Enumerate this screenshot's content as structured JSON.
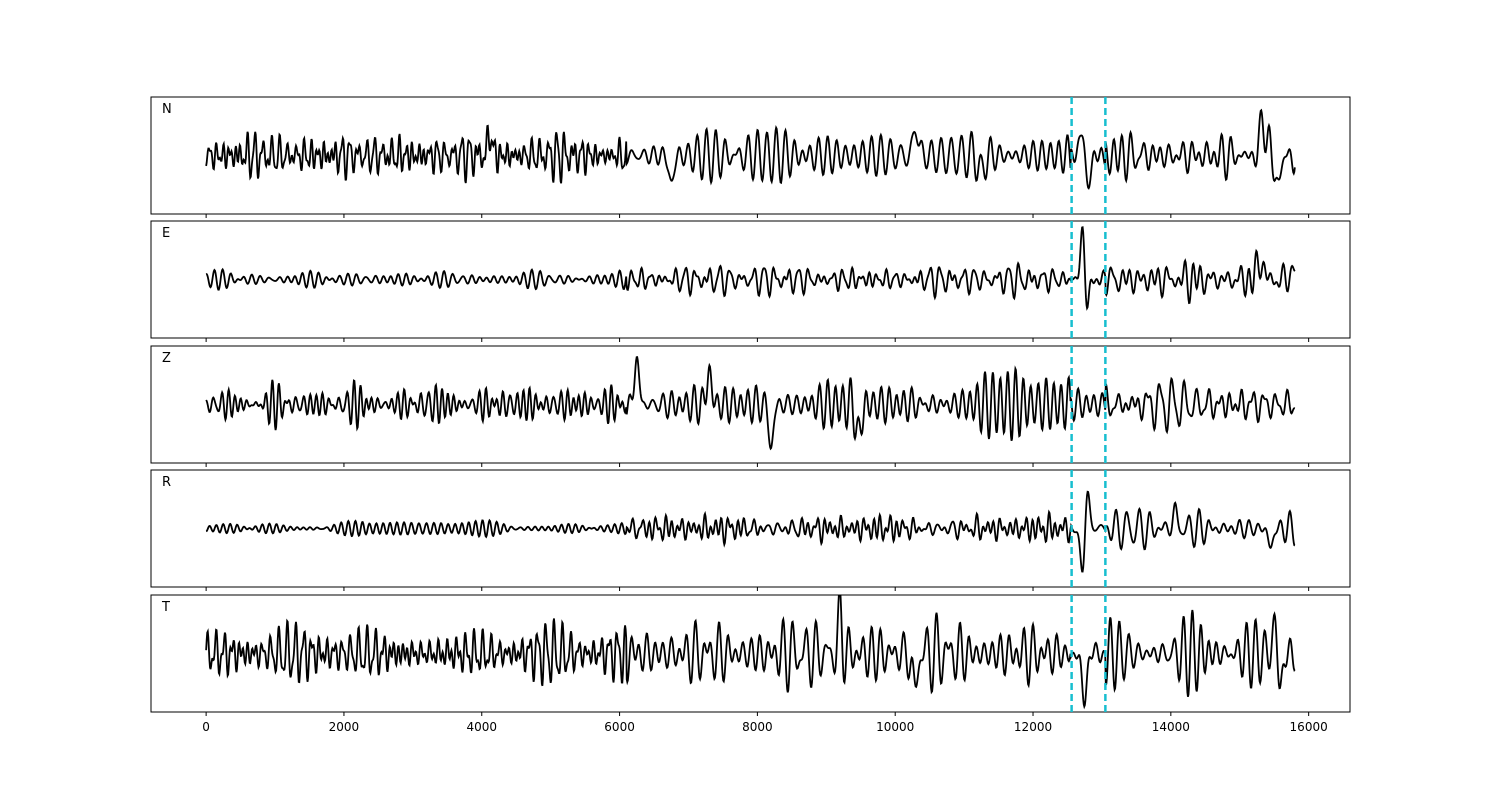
{
  "chart_data": {
    "type": "line",
    "xlim": [
      -800,
      16600
    ],
    "x_ticks": [
      0,
      2000,
      4000,
      6000,
      8000,
      10000,
      12000,
      14000,
      16000
    ],
    "x_tick_labels": [
      "0",
      "2000",
      "4000",
      "6000",
      "8000",
      "10000",
      "12000",
      "14000",
      "16000"
    ],
    "samples": 15800,
    "shared_x": true,
    "grid": false,
    "trace_color": "#000000",
    "marker_color": "#17becf",
    "markers": [
      12560,
      13050
    ],
    "panels": [
      {
        "label": "N",
        "ylim": [
          -1,
          1
        ],
        "segments": [
          {
            "x0": 0,
            "x1": 6100,
            "amp": 0.35,
            "period": 95
          },
          {
            "x0": 6100,
            "x1": 12550,
            "amp": 0.45,
            "period": 120
          },
          {
            "x0": 12550,
            "x1": 13050,
            "amp": 0.25,
            "period": 160
          },
          {
            "x0": 13050,
            "x1": 15800,
            "amp": 0.45,
            "period": 130
          }
        ],
        "events": [
          {
            "x": 4120,
            "a": 0.45,
            "w": 40
          },
          {
            "x": 6750,
            "a": -0.6,
            "w": 45
          },
          {
            "x": 10300,
            "a": 0.6,
            "w": 45
          },
          {
            "x": 11250,
            "a": -0.45,
            "w": 40
          },
          {
            "x": 12730,
            "a": 0.8,
            "w": 55
          },
          {
            "x": 12780,
            "a": -0.9,
            "w": 55
          },
          {
            "x": 15340,
            "a": 0.8,
            "w": 50
          },
          {
            "x": 15560,
            "a": -0.6,
            "w": 50
          }
        ]
      },
      {
        "label": "E",
        "ylim": [
          -1,
          1
        ],
        "segments": [
          {
            "x0": 0,
            "x1": 6100,
            "amp": 0.12,
            "period": 95
          },
          {
            "x0": 6100,
            "x1": 12550,
            "amp": 0.22,
            "period": 120
          },
          {
            "x0": 12550,
            "x1": 13050,
            "amp": 0.1,
            "period": 160
          },
          {
            "x0": 13050,
            "x1": 15800,
            "amp": 0.28,
            "period": 140
          }
        ],
        "events": [
          {
            "x": 12720,
            "a": 1.0,
            "w": 45
          },
          {
            "x": 12780,
            "a": -0.6,
            "w": 45
          },
          {
            "x": 15300,
            "a": 0.45,
            "w": 50
          },
          {
            "x": 15780,
            "a": 0.3,
            "w": 40
          }
        ]
      },
      {
        "label": "Z",
        "ylim": [
          -1,
          1
        ],
        "segments": [
          {
            "x0": 0,
            "x1": 6100,
            "amp": 0.28,
            "period": 95
          },
          {
            "x0": 6100,
            "x1": 12550,
            "amp": 0.45,
            "period": 140
          },
          {
            "x0": 12550,
            "x1": 13050,
            "amp": 0.3,
            "period": 130
          },
          {
            "x0": 13050,
            "x1": 15800,
            "amp": 0.4,
            "period": 130
          }
        ],
        "events": [
          {
            "x": 6250,
            "a": 0.9,
            "w": 45
          },
          {
            "x": 7300,
            "a": 0.6,
            "w": 50
          },
          {
            "x": 8200,
            "a": -0.85,
            "w": 45
          },
          {
            "x": 9470,
            "a": -0.7,
            "w": 45
          }
        ]
      },
      {
        "label": "R",
        "ylim": [
          -1,
          1
        ],
        "segments": [
          {
            "x0": 0,
            "x1": 6100,
            "amp": 0.12,
            "period": 95
          },
          {
            "x0": 6100,
            "x1": 12550,
            "amp": 0.2,
            "period": 120
          },
          {
            "x0": 12550,
            "x1": 13050,
            "amp": 0.1,
            "period": 160
          },
          {
            "x0": 13050,
            "x1": 15800,
            "amp": 0.28,
            "period": 140
          }
        ],
        "events": [
          {
            "x": 12720,
            "a": -0.9,
            "w": 45
          },
          {
            "x": 12790,
            "a": 0.75,
            "w": 45
          },
          {
            "x": 14060,
            "a": 0.35,
            "w": 40
          },
          {
            "x": 15450,
            "a": -0.35,
            "w": 50
          }
        ]
      },
      {
        "label": "T",
        "ylim": [
          -1,
          1
        ],
        "segments": [
          {
            "x0": 0,
            "x1": 6100,
            "amp": 0.4,
            "period": 95
          },
          {
            "x0": 6100,
            "x1": 12550,
            "amp": 0.5,
            "period": 120
          },
          {
            "x0": 12550,
            "x1": 13050,
            "amp": 0.25,
            "period": 150
          },
          {
            "x0": 13050,
            "x1": 15800,
            "amp": 0.5,
            "period": 130
          }
        ],
        "events": [
          {
            "x": 9200,
            "a": 0.7,
            "w": 40
          },
          {
            "x": 10280,
            "a": -0.75,
            "w": 45
          },
          {
            "x": 12740,
            "a": -0.9,
            "w": 50
          },
          {
            "x": 15520,
            "a": 0.7,
            "w": 50
          },
          {
            "x": 15580,
            "a": -0.8,
            "w": 50
          }
        ]
      }
    ]
  }
}
